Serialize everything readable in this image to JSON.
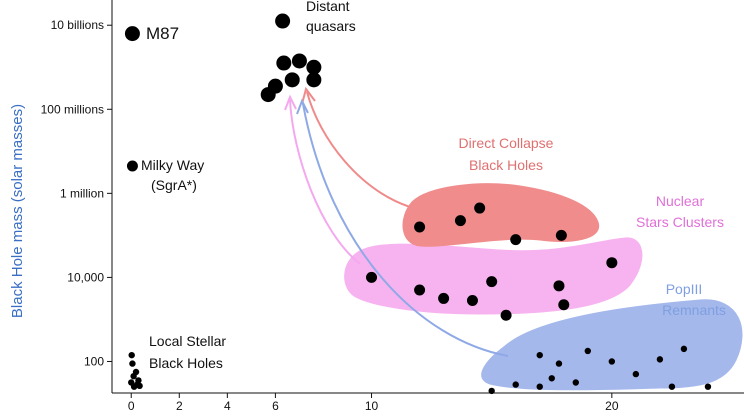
{
  "chart_data": {
    "type": "scatter",
    "title": "",
    "xlabel": "",
    "ylabel": "Black Hole mass (solar masses)",
    "xlim": [
      -0.8,
      25.5
    ],
    "ylim_log10": [
      1.25,
      10.6
    ],
    "yscale": "log",
    "x_ticks": [
      {
        "value": 0,
        "label": "0"
      },
      {
        "value": 2,
        "label": "2"
      },
      {
        "value": 4,
        "label": "4"
      },
      {
        "value": 6,
        "label": "6"
      },
      {
        "value": 10,
        "label": "10"
      },
      {
        "value": 20,
        "label": "20"
      }
    ],
    "y_ticks": [
      {
        "log10": 2,
        "label": "100"
      },
      {
        "log10": 4,
        "label": "10,000"
      },
      {
        "log10": 6,
        "label": "1 million"
      },
      {
        "log10": 8,
        "label": "100 millions"
      },
      {
        "log10": 10,
        "label": "10 billions"
      }
    ],
    "labels": {
      "m87": "M87",
      "milky_way_1": "Milky Way",
      "milky_way_2": "(SgrA*)",
      "local_1": "Local Stellar",
      "local_2": "Black Holes",
      "quasars_1": "Distant",
      "quasars_2": "quasars",
      "dcbh_1": "Direct Collapse",
      "dcbh_2": "Black Holes",
      "nsc_1": "Nuclear",
      "nsc_2": "Stars Clusters",
      "pop3_1": "PopIII",
      "pop3_2": "Remnants"
    },
    "colors": {
      "dcbh": "#f08c8c",
      "nsc": "#f7b3f0",
      "pop3": "#a4b8ec",
      "dcbh_text": "#e07070",
      "nsc_text": "#e070d8",
      "pop3_text": "#7f9fe0",
      "ylabel": "#3a6fc4",
      "arrow_dcbh": "#f08a8a",
      "arrow_nsc": "#f4a8ee",
      "arrow_pop3": "#8fa9e6",
      "points": "#000000"
    },
    "series": [
      {
        "name": "M87",
        "size": "large",
        "points": [
          {
            "x": 0.05,
            "y": 9.8
          }
        ]
      },
      {
        "name": "Milky Way (SgrA*)",
        "size": "medium",
        "points": [
          {
            "x": 0.05,
            "y": 6.65
          }
        ]
      },
      {
        "name": "Local Stellar Black Holes",
        "size": "small",
        "points": [
          {
            "x": 0.02,
            "y": 2.15
          },
          {
            "x": 0.05,
            "y": 1.95
          },
          {
            "x": 0.2,
            "y": 1.75
          },
          {
            "x": 0.1,
            "y": 1.65
          },
          {
            "x": 0.3,
            "y": 1.55
          },
          {
            "x": 0.0,
            "y": 1.5
          },
          {
            "x": 0.25,
            "y": 1.45
          },
          {
            "x": 0.12,
            "y": 1.4
          },
          {
            "x": 0.35,
            "y": 1.42
          }
        ]
      },
      {
        "name": "Distant quasars",
        "size": "large",
        "points": [
          {
            "x": 6.3,
            "y": 10.1
          },
          {
            "x": 6.35,
            "y": 9.1
          },
          {
            "x": 7.0,
            "y": 9.15
          },
          {
            "x": 7.6,
            "y": 9.0
          },
          {
            "x": 7.6,
            "y": 8.7
          },
          {
            "x": 6.7,
            "y": 8.7
          },
          {
            "x": 6.0,
            "y": 8.55
          },
          {
            "x": 5.7,
            "y": 8.35
          }
        ]
      },
      {
        "name": "Direct Collapse Black Holes",
        "size": "medium",
        "points": [
          {
            "x": 12.0,
            "y": 5.2
          },
          {
            "x": 13.7,
            "y": 5.35
          },
          {
            "x": 14.5,
            "y": 5.65
          },
          {
            "x": 16.0,
            "y": 4.9
          },
          {
            "x": 17.9,
            "y": 5.0
          }
        ]
      },
      {
        "name": "Nuclear Stars Clusters",
        "size": "medium",
        "points": [
          {
            "x": 10.0,
            "y": 4.0
          },
          {
            "x": 12.0,
            "y": 3.7
          },
          {
            "x": 13.0,
            "y": 3.5
          },
          {
            "x": 14.2,
            "y": 3.45
          },
          {
            "x": 15.0,
            "y": 3.9
          },
          {
            "x": 15.6,
            "y": 3.1
          },
          {
            "x": 17.8,
            "y": 3.8
          },
          {
            "x": 18.0,
            "y": 3.35
          },
          {
            "x": 20.0,
            "y": 4.35
          }
        ]
      },
      {
        "name": "PopIII Remnants",
        "size": "small",
        "points": [
          {
            "x": 15.0,
            "y": 1.3
          },
          {
            "x": 16.0,
            "y": 1.45
          },
          {
            "x": 17.0,
            "y": 1.4
          },
          {
            "x": 17.5,
            "y": 1.6
          },
          {
            "x": 17.8,
            "y": 1.95
          },
          {
            "x": 17.0,
            "y": 2.15
          },
          {
            "x": 19.0,
            "y": 2.25
          },
          {
            "x": 20.0,
            "y": 2.0
          },
          {
            "x": 21.0,
            "y": 1.7
          },
          {
            "x": 22.0,
            "y": 2.05
          },
          {
            "x": 23.0,
            "y": 2.3
          },
          {
            "x": 22.5,
            "y": 1.4
          },
          {
            "x": 24.0,
            "y": 1.4
          },
          {
            "x": 18.5,
            "y": 1.5
          }
        ]
      }
    ]
  }
}
